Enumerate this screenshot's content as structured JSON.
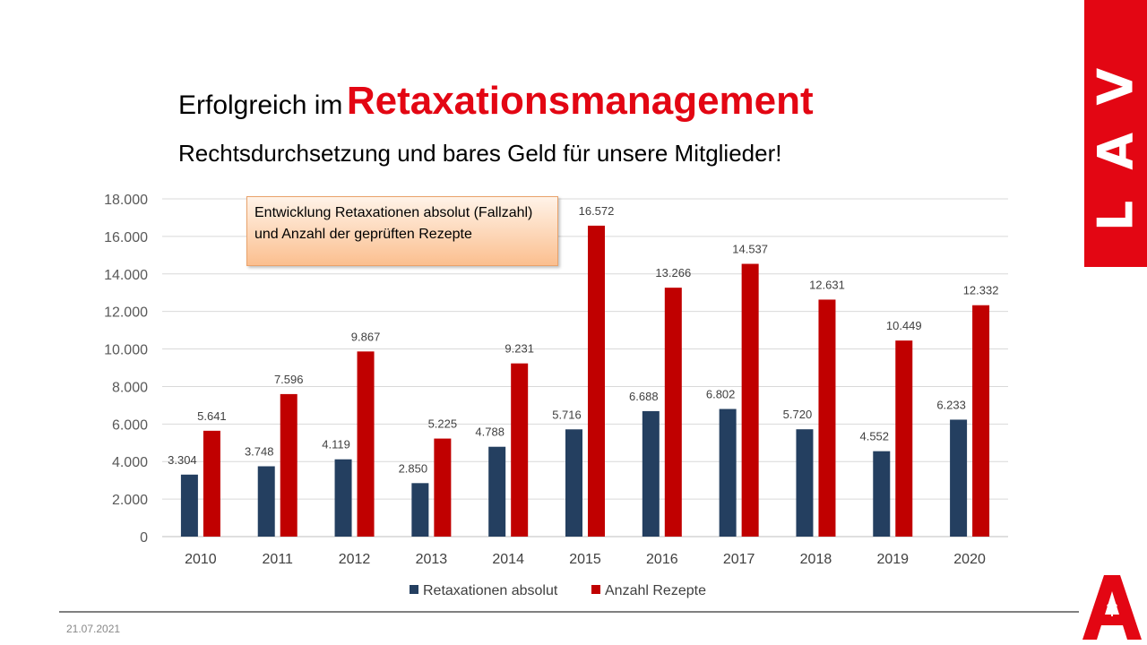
{
  "header": {
    "title_prefix": "Erfolgreich im",
    "title_main": "Retaxationsmanagement",
    "subtitle": "Rechtsdurchsetzung und bares Geld für unsere Mitglieder!"
  },
  "brand": {
    "lav": "LAV",
    "logo_icon": "apotheke-a-icon",
    "accent": "#e30613"
  },
  "annotation": "Entwicklung Retaxationen absolut (Fallzahl) und Anzahl der geprüften Rezepte",
  "footer": {
    "date": "21.07.2021"
  },
  "chart_data": {
    "type": "bar",
    "categories": [
      "2010",
      "2011",
      "2012",
      "2013",
      "2014",
      "2015",
      "2016",
      "2017",
      "2018",
      "2019",
      "2020"
    ],
    "series": [
      {
        "name": "Retaxationen absolut",
        "color": "#243f60",
        "values": [
          3304,
          3748,
          4119,
          2850,
          4788,
          5716,
          6688,
          6802,
          5720,
          4552,
          6233
        ],
        "labels": [
          "3.304",
          "3.748",
          "4.119",
          "2.850",
          "4.788",
          "5.716",
          "6.688",
          "6.802",
          "5.720",
          "4.552",
          "6.233"
        ]
      },
      {
        "name": "Anzahl Rezepte",
        "color": "#c00000",
        "values": [
          5641,
          7596,
          9867,
          5225,
          9231,
          16572,
          13266,
          14537,
          12631,
          10449,
          12332
        ],
        "labels": [
          "5.641",
          "7.596",
          "9.867",
          "5.225",
          "9.231",
          "16.572",
          "13.266",
          "14.537",
          "12.631",
          "10.449",
          "12.332"
        ]
      }
    ],
    "ylim": [
      0,
      18000
    ],
    "yticks": [
      0,
      2000,
      4000,
      6000,
      8000,
      10000,
      12000,
      14000,
      16000,
      18000
    ],
    "ytick_labels": [
      "0",
      "2.000",
      "4.000",
      "6.000",
      "8.000",
      "10.000",
      "12.000",
      "14.000",
      "16.000",
      "18.000"
    ],
    "grid": true,
    "legend": "bottom"
  }
}
